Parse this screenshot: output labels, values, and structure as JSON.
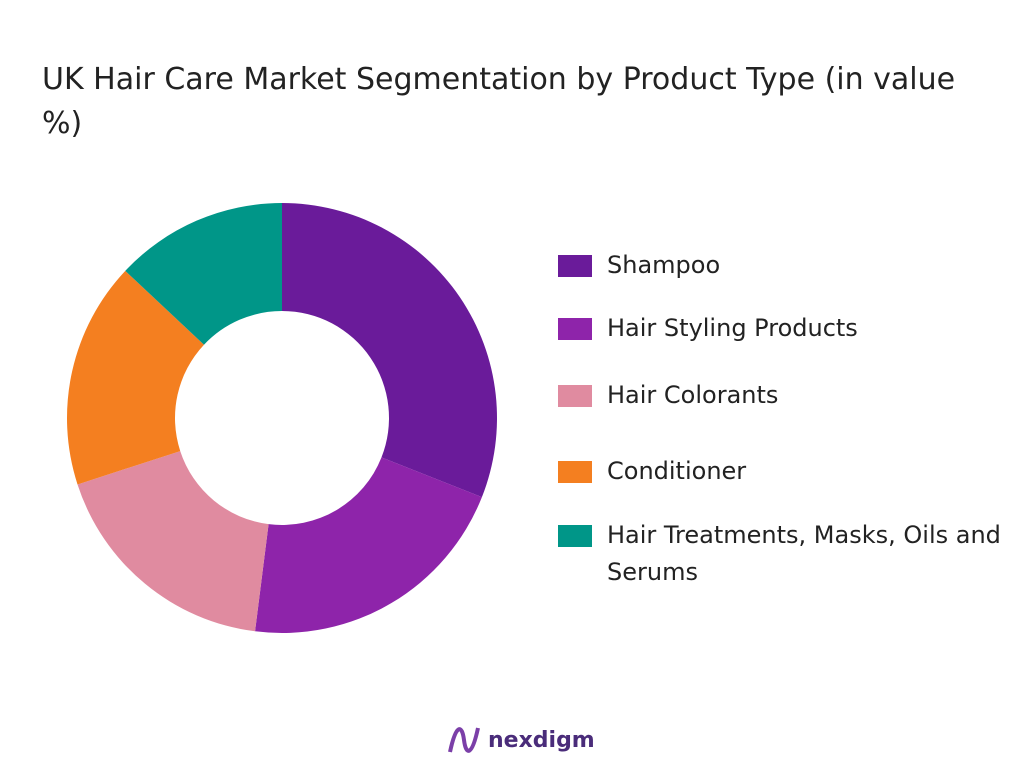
{
  "chart_data": {
    "type": "donut",
    "title": "UK Hair Care Market Segmentation by Product Type (in value %)",
    "categories": [
      "Shampoo",
      "Hair Styling Products",
      "Hair Colorants",
      "Conditioner",
      "Hair Treatments, Masks, Oils and Serums"
    ],
    "values": [
      31,
      21,
      18,
      17,
      13
    ],
    "colors": [
      "#6a1b9a",
      "#8e24aa",
      "#e08ba0",
      "#f47f20",
      "#009688"
    ]
  },
  "brand": "nexdigm"
}
